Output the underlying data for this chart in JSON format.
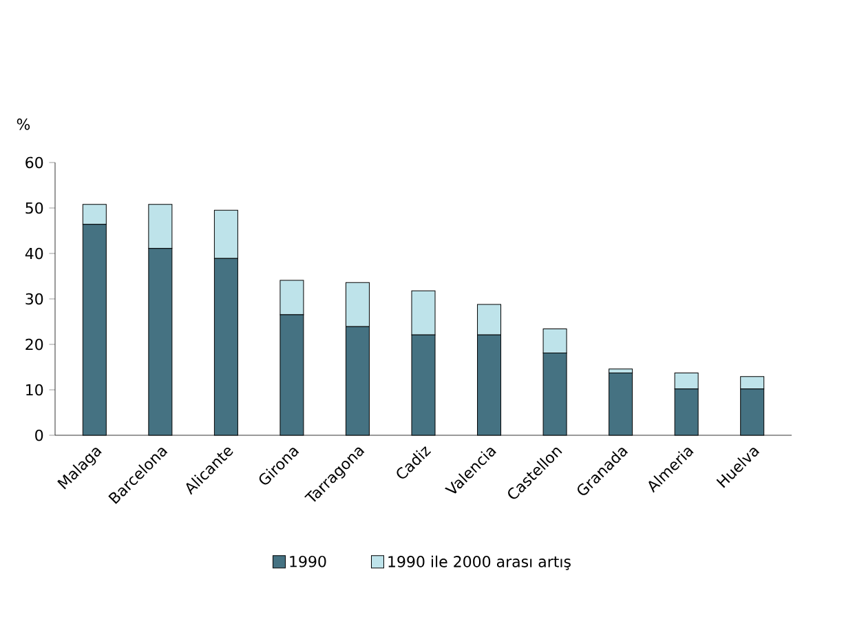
{
  "chart_data": {
    "type": "bar",
    "stacked": true,
    "ylabel": "%",
    "categories": [
      "Malaga",
      "Barcelona",
      "Alicante",
      "Girona",
      "Tarragona",
      "Cadiz",
      "Valencia",
      "Castellon",
      "Granada",
      "Almeria",
      "Huelva"
    ],
    "series": [
      {
        "name": "1990",
        "color": "#457282",
        "values": [
          46.4,
          41.1,
          38.9,
          26.5,
          23.9,
          22.1,
          22.1,
          18.1,
          13.7,
          10.2,
          10.2
        ]
      },
      {
        "name": "1990 ile 2000 arası artış",
        "color": "#bee3ea",
        "values": [
          4.4,
          9.7,
          10.6,
          7.6,
          9.7,
          9.7,
          6.7,
          5.3,
          0.9,
          3.5,
          2.7
        ]
      }
    ],
    "ylim": [
      0,
      60
    ],
    "yticks": [
      0,
      10,
      20,
      30,
      40,
      50,
      60
    ],
    "grid": false,
    "legend": "bottom"
  }
}
